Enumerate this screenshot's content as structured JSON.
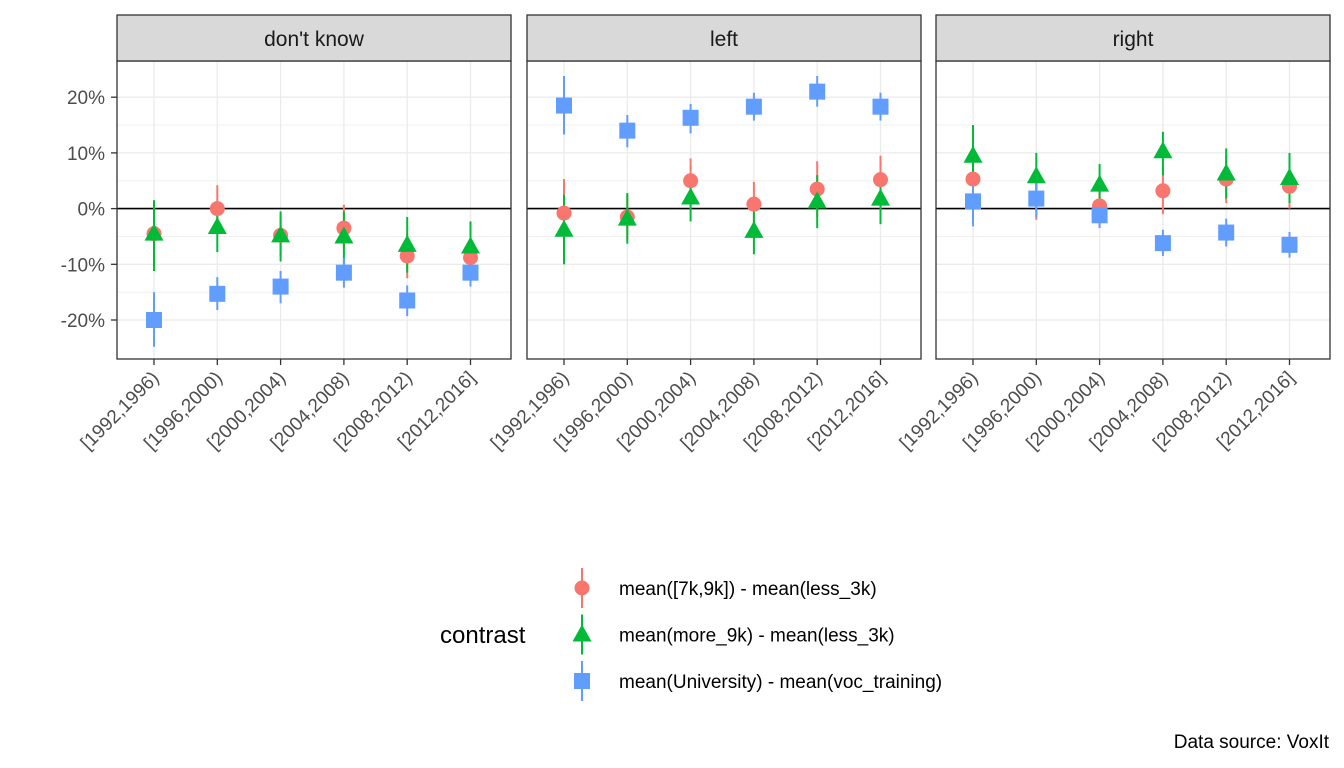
{
  "chart_data": {
    "type": "scatter",
    "facets": [
      "don't know",
      "left",
      "right"
    ],
    "categories": [
      "[1992,1996)",
      "[1996,2000)",
      "[2000,2004)",
      "[2004,2008)",
      "[2008,2012)",
      "[2012,2016]"
    ],
    "y_ticks": [
      {
        "value": 20,
        "label": "20%"
      },
      {
        "value": 10,
        "label": "10%"
      },
      {
        "value": 0,
        "label": "0%"
      },
      {
        "value": -10,
        "label": "-10%"
      },
      {
        "value": -20,
        "label": "-20%"
      }
    ],
    "ylim": [
      -27,
      26.5
    ],
    "grid": true,
    "hline": 0,
    "legend_position": "bottom",
    "legend_title": "contrast",
    "caption": "Data source: VoxIt",
    "series": [
      {
        "name": "mean([7k,9k]) - mean(less_3k)",
        "color": "#F8766D",
        "shape": "circle",
        "values": {
          "don't know": [
            {
              "est": -4.5,
              "lo": -11.0,
              "hi": 1.5
            },
            {
              "est": 0.0,
              "lo": -4.0,
              "hi": 4.2
            },
            {
              "est": -4.8,
              "lo": -8.5,
              "hi": -1.2
            },
            {
              "est": -3.5,
              "lo": -7.0,
              "hi": 0.7
            },
            {
              "est": -8.5,
              "lo": -12.5,
              "hi": -4.5
            },
            {
              "est": -8.8,
              "lo": -12.0,
              "hi": -5.2
            }
          ],
          "left": [
            {
              "est": -0.8,
              "lo": -7.0,
              "hi": 5.3
            },
            {
              "est": -1.5,
              "lo": -5.5,
              "hi": 2.5
            },
            {
              "est": 5.0,
              "lo": 1.0,
              "hi": 9.0
            },
            {
              "est": 0.8,
              "lo": -3.0,
              "hi": 4.8
            },
            {
              "est": 3.5,
              "lo": -1.5,
              "hi": 8.5
            },
            {
              "est": 5.2,
              "lo": 1.0,
              "hi": 9.5
            }
          ],
          "right": [
            {
              "est": 5.3,
              "lo": 1.0,
              "hi": 9.5
            },
            {
              "est": 1.8,
              "lo": -2.0,
              "hi": 5.5
            },
            {
              "est": 0.5,
              "lo": -3.0,
              "hi": 4.0
            },
            {
              "est": 3.2,
              "lo": -1.0,
              "hi": 7.5
            },
            {
              "est": 5.3,
              "lo": 1.0,
              "hi": 9.5
            },
            {
              "est": 4.0,
              "lo": 0.0,
              "hi": 8.0
            }
          ]
        }
      },
      {
        "name": "mean(more_9k) - mean(less_3k)",
        "color": "#00BA38",
        "shape": "triangle",
        "values": {
          "don't know": [
            {
              "est": -4.5,
              "lo": -11.2,
              "hi": 1.5
            },
            {
              "est": -3.3,
              "lo": -7.8,
              "hi": 1.2
            },
            {
              "est": -4.8,
              "lo": -9.5,
              "hi": -0.5
            },
            {
              "est": -5.0,
              "lo": -10.0,
              "hi": -0.5
            },
            {
              "est": -6.5,
              "lo": -11.5,
              "hi": -1.5
            },
            {
              "est": -6.8,
              "lo": -11.0,
              "hi": -2.3
            }
          ],
          "left": [
            {
              "est": -3.8,
              "lo": -10.0,
              "hi": 2.5
            },
            {
              "est": -1.8,
              "lo": -6.3,
              "hi": 2.8
            },
            {
              "est": 2.0,
              "lo": -2.3,
              "hi": 6.3
            },
            {
              "est": -4.0,
              "lo": -8.2,
              "hi": 0.3
            },
            {
              "est": 1.3,
              "lo": -3.5,
              "hi": 6.0
            },
            {
              "est": 1.8,
              "lo": -2.8,
              "hi": 6.3
            }
          ],
          "right": [
            {
              "est": 9.5,
              "lo": 4.0,
              "hi": 15.0
            },
            {
              "est": 5.8,
              "lo": 1.5,
              "hi": 10.0
            },
            {
              "est": 4.3,
              "lo": 0.5,
              "hi": 8.0
            },
            {
              "est": 10.3,
              "lo": 6.0,
              "hi": 13.8
            },
            {
              "est": 6.3,
              "lo": 1.8,
              "hi": 10.8
            },
            {
              "est": 5.5,
              "lo": 1.0,
              "hi": 10.0
            }
          ]
        }
      },
      {
        "name": "mean(University) - mean(voc_training)",
        "color": "#619CFF",
        "shape": "square",
        "values": {
          "don't know": [
            {
              "est": -20.0,
              "lo": -24.8,
              "hi": -15.0
            },
            {
              "est": -15.3,
              "lo": -18.2,
              "hi": -12.3
            },
            {
              "est": -14.0,
              "lo": -17.0,
              "hi": -11.2
            },
            {
              "est": -11.5,
              "lo": -14.2,
              "hi": -8.8
            },
            {
              "est": -16.5,
              "lo": -19.3,
              "hi": -13.8
            },
            {
              "est": -11.5,
              "lo": -14.0,
              "hi": -9.0
            }
          ],
          "left": [
            {
              "est": 18.5,
              "lo": 13.3,
              "hi": 23.8
            },
            {
              "est": 14.0,
              "lo": 11.0,
              "hi": 16.8
            },
            {
              "est": 16.3,
              "lo": 13.5,
              "hi": 18.8
            },
            {
              "est": 18.3,
              "lo": 15.8,
              "hi": 20.8
            },
            {
              "est": 21.0,
              "lo": 18.3,
              "hi": 23.8
            },
            {
              "est": 18.3,
              "lo": 15.8,
              "hi": 20.8
            }
          ],
          "right": [
            {
              "est": 1.3,
              "lo": -3.2,
              "hi": 5.5
            },
            {
              "est": 1.8,
              "lo": -1.5,
              "hi": 5.0
            },
            {
              "est": -1.2,
              "lo": -3.5,
              "hi": 1.2
            },
            {
              "est": -6.2,
              "lo": -8.5,
              "hi": -3.8
            },
            {
              "est": -4.3,
              "lo": -6.8,
              "hi": -1.8
            },
            {
              "est": -6.5,
              "lo": -8.8,
              "hi": -4.2
            }
          ]
        }
      }
    ]
  }
}
